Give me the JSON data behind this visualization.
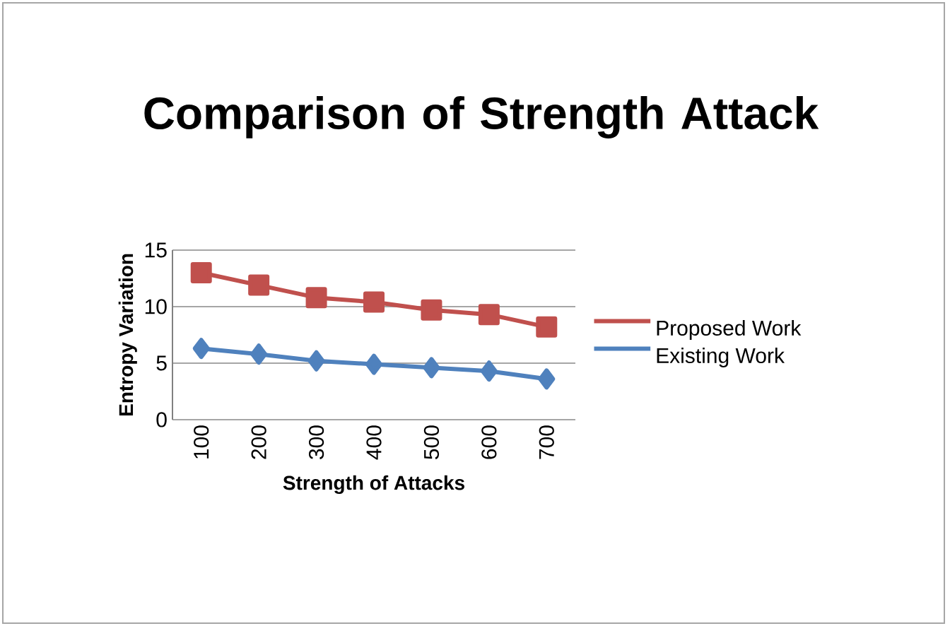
{
  "chart_data": {
    "type": "line",
    "title": "Comparison of Strength Attack",
    "xlabel": "Strength of Attacks",
    "ylabel": "Entropy Variation",
    "categories": [
      "100",
      "200",
      "300",
      "400",
      "500",
      "600",
      "700"
    ],
    "series": [
      {
        "name": "Proposed Work",
        "color": "#c0504d",
        "marker": "square",
        "values": [
          13.0,
          11.9,
          10.8,
          10.4,
          9.7,
          9.3,
          8.2
        ]
      },
      {
        "name": "Existing Work",
        "color": "#4f81bd",
        "marker": "diamond",
        "values": [
          6.3,
          5.8,
          5.2,
          4.9,
          4.6,
          4.3,
          3.6
        ]
      }
    ],
    "ylim": [
      0,
      15
    ],
    "yticks": [
      0,
      5,
      10,
      15
    ],
    "grid": "y",
    "legend": "right"
  }
}
